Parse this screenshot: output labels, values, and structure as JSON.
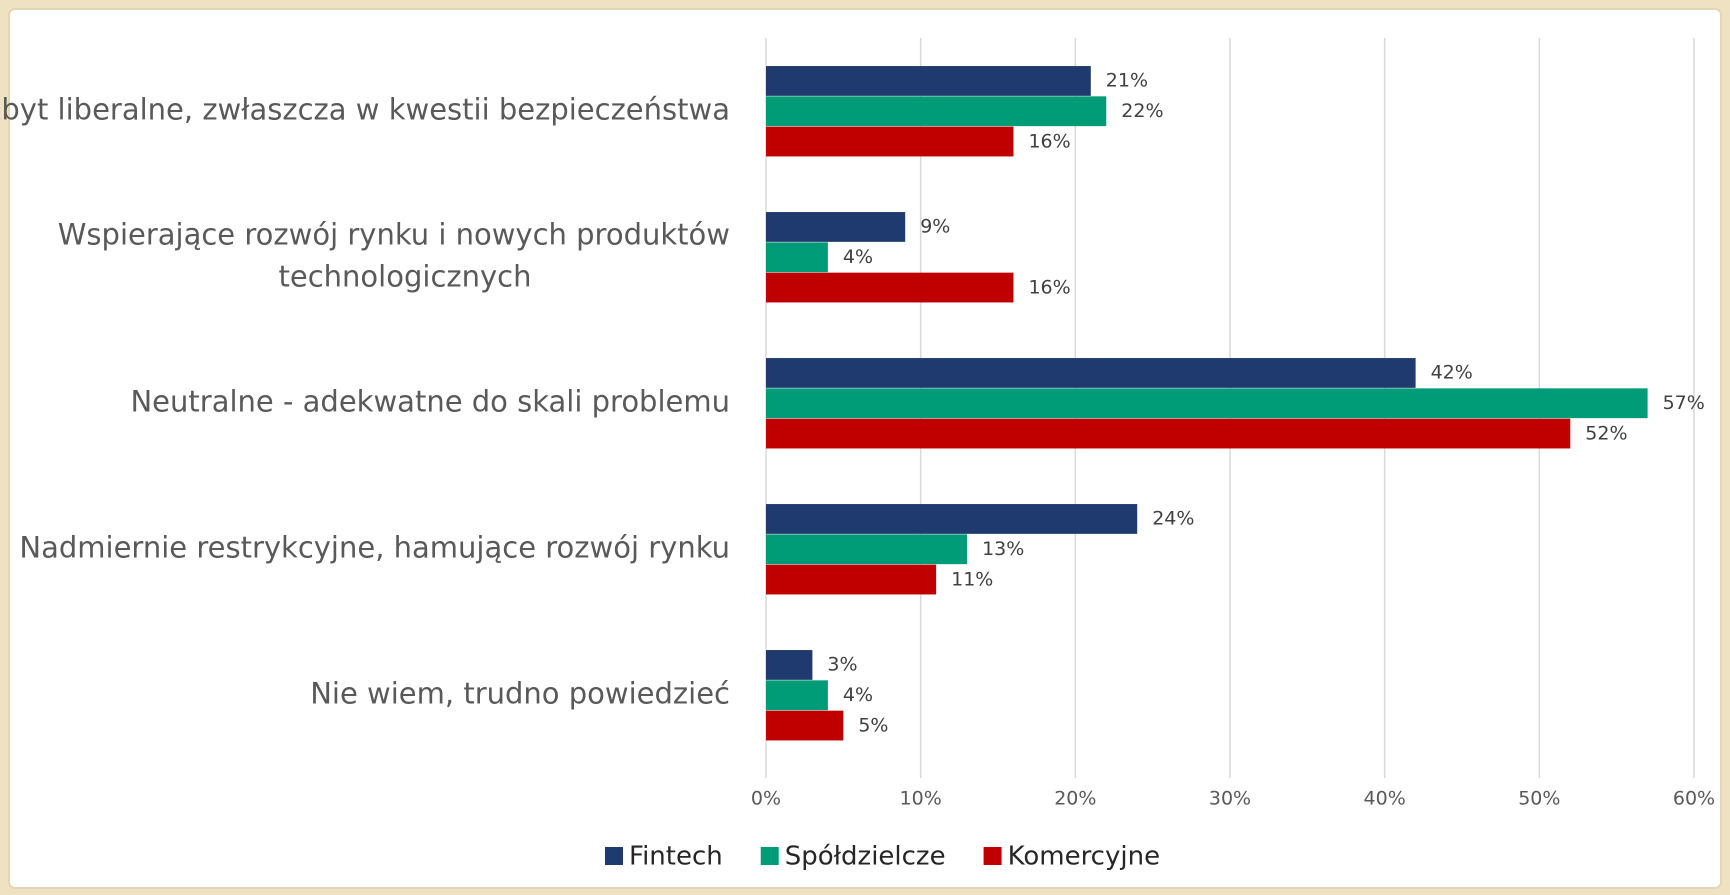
{
  "chart_data": {
    "type": "bar",
    "orientation": "horizontal",
    "categories": [
      "Zbyt liberalne, zwłaszcza w kwestii bezpieczeństwa",
      "Wspierające rozwój rynku i nowych produktów technologicznych",
      "Neutralne - adekwatne do skali problemu",
      "Nadmiernie restrykcyjne, hamujące rozwój rynku",
      "Nie wiem, trudno powiedzieć"
    ],
    "series": [
      {
        "name": "Fintech",
        "color": "#1f3a6e",
        "values": [
          21,
          9,
          42,
          24,
          3
        ],
        "value_labels": [
          "21%",
          "9%",
          "42%",
          "24%",
          "3%"
        ]
      },
      {
        "name": "Spółdzielcze",
        "color": "#009b77",
        "values": [
          22,
          4,
          57,
          13,
          4
        ],
        "value_labels": [
          "22%",
          "4%",
          "57%",
          "13%",
          "4%"
        ]
      },
      {
        "name": "Komercyjne",
        "color": "#c00000",
        "values": [
          16,
          16,
          52,
          11,
          5
        ],
        "value_labels": [
          "16%",
          "16%",
          "52%",
          "11%",
          "5%"
        ]
      }
    ],
    "xlim": [
      0,
      60
    ],
    "xticks": [
      {
        "value": 0,
        "label": "0%"
      },
      {
        "value": 10,
        "label": "10%"
      },
      {
        "value": 20,
        "label": "20%"
      },
      {
        "value": 30,
        "label": "30%"
      },
      {
        "value": 40,
        "label": "40%"
      },
      {
        "value": 50,
        "label": "50%"
      },
      {
        "value": 60,
        "label": "60%"
      }
    ],
    "grid": true,
    "legend": "bottom"
  }
}
